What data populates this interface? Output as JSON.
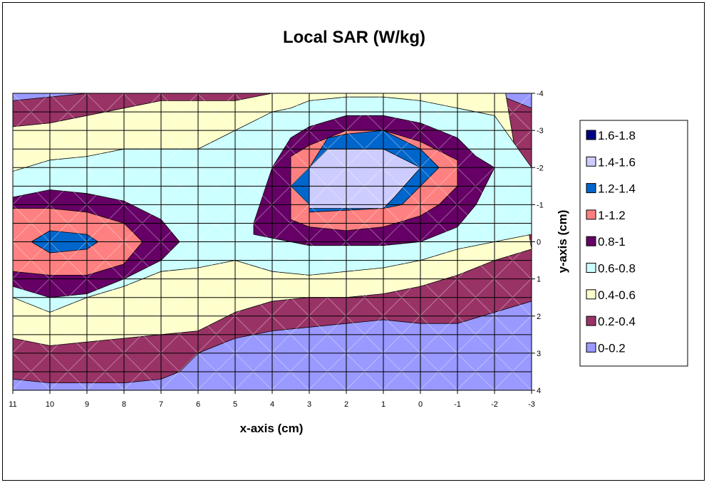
{
  "chart_data": {
    "type": "contour",
    "title": "Local SAR (W/kg)",
    "xlabel": "x-axis (cm)",
    "ylabel": "y-axis (cm)",
    "x_ticks": [
      "11",
      "10",
      "9",
      "8",
      "7",
      "6",
      "5",
      "4",
      "3",
      "2",
      "1",
      "0",
      "-1",
      "-2",
      "-3"
    ],
    "y_ticks": [
      "-4",
      "-3",
      "-2",
      "-1",
      "0",
      "1",
      "2",
      "3",
      "4"
    ],
    "xlim": [
      11,
      -3
    ],
    "ylim": [
      -4,
      4
    ],
    "grid": true,
    "legend_position": "right",
    "legend": [
      {
        "label": "1.6-1.8",
        "color": "#000080"
      },
      {
        "label": "1.4-1.6",
        "color": "#CCCCFF"
      },
      {
        "label": "1.2-1.4",
        "color": "#0066CC"
      },
      {
        "label": "1-1.2",
        "color": "#FF8080"
      },
      {
        "label": "0.8-1",
        "color": "#660066"
      },
      {
        "label": "0.6-0.8",
        "color": "#CCFFFF"
      },
      {
        "label": "0.4-0.6",
        "color": "#FFFFCC"
      },
      {
        "label": "0.2-0.4",
        "color": "#993366"
      },
      {
        "label": "0-0.2",
        "color": "#9999FF"
      }
    ],
    "bands": [
      {
        "label": "0-0.2",
        "color": "#9999FF",
        "points": [
          [
            11,
            -4
          ],
          [
            -3,
            -4
          ],
          [
            -3,
            4
          ],
          [
            11,
            4
          ]
        ]
      },
      {
        "label": "0.2-0.4",
        "color": "#993366",
        "points": [
          [
            11,
            -3.8
          ],
          [
            9,
            -4
          ],
          [
            4,
            -4
          ],
          [
            1,
            -4
          ],
          [
            -2,
            -4
          ],
          [
            -3,
            -3.6
          ],
          [
            -3,
            1.6
          ],
          [
            -2,
            1.9
          ],
          [
            -1,
            2.2
          ],
          [
            0,
            2.2
          ],
          [
            1,
            2.1
          ],
          [
            2,
            2.2
          ],
          [
            4,
            2.4
          ],
          [
            5,
            2.6
          ],
          [
            6,
            3
          ],
          [
            6.5,
            3.5
          ],
          [
            7,
            3.7
          ],
          [
            8,
            3.8
          ],
          [
            9,
            3.8
          ],
          [
            10,
            3.8
          ],
          [
            11,
            3.7
          ]
        ]
      },
      {
        "label": "0.4-0.6",
        "color": "#FFFFCC",
        "points": [
          [
            11,
            -3.1
          ],
          [
            10,
            -3.2
          ],
          [
            9,
            -3.4
          ],
          [
            8,
            -3.6
          ],
          [
            7,
            -3.8
          ],
          [
            6,
            -3.8
          ],
          [
            5,
            -3.8
          ],
          [
            4,
            -4
          ],
          [
            2,
            -4
          ],
          [
            0,
            -4
          ],
          [
            -2,
            -4
          ],
          [
            -2.3,
            -4
          ],
          [
            -3,
            0.2
          ],
          [
            -2,
            0.5
          ],
          [
            -1,
            0.9
          ],
          [
            0,
            1.2
          ],
          [
            1,
            1.4
          ],
          [
            2,
            1.5
          ],
          [
            3,
            1.5
          ],
          [
            4,
            1.6
          ],
          [
            5,
            1.9
          ],
          [
            6,
            2.4
          ],
          [
            7,
            2.5
          ],
          [
            8,
            2.6
          ],
          [
            9,
            2.7
          ],
          [
            10,
            2.8
          ],
          [
            11,
            2.6
          ]
        ]
      },
      {
        "label": "0.6-0.8",
        "color": "#CCFFFF",
        "points": [
          [
            11,
            -1.9
          ],
          [
            10,
            -2.2
          ],
          [
            9,
            -2.3
          ],
          [
            8,
            -2.5
          ],
          [
            7,
            -2.5
          ],
          [
            6,
            -2.5
          ],
          [
            5,
            -3
          ],
          [
            4,
            -3.5
          ],
          [
            3.5,
            -3.6
          ],
          [
            3,
            -3.8
          ],
          [
            2,
            -3.9
          ],
          [
            1,
            -3.9
          ],
          [
            0,
            -3.8
          ],
          [
            -1,
            -3.6
          ],
          [
            -2,
            -3.4
          ],
          [
            -3,
            -2.0
          ],
          [
            -3,
            -0.2
          ],
          [
            -2,
            0
          ],
          [
            -1,
            0.2
          ],
          [
            0,
            0.5
          ],
          [
            1,
            0.7
          ],
          [
            2,
            0.8
          ],
          [
            3,
            0.9
          ],
          [
            4,
            0.8
          ],
          [
            5,
            0.5
          ],
          [
            6,
            0.7
          ],
          [
            7,
            0.8
          ],
          [
            8,
            1.2
          ],
          [
            9,
            1.5
          ],
          [
            10,
            1.9
          ],
          [
            11,
            1.5
          ]
        ]
      },
      {
        "label": "0.8-1",
        "color": "#660066",
        "points": [
          [
            11,
            -1.2
          ],
          [
            10,
            -1.4
          ],
          [
            9,
            -1.3
          ],
          [
            8,
            -1.1
          ],
          [
            7,
            -0.6
          ],
          [
            6.5,
            0
          ],
          [
            7,
            0.5
          ],
          [
            8,
            1.0
          ],
          [
            9,
            1.4
          ],
          [
            10,
            1.5
          ],
          [
            11,
            1.2
          ]
        ]
      },
      {
        "label": "0.8-1",
        "color": "#660066",
        "points": [
          [
            4.5,
            -0.5
          ],
          [
            4,
            -2
          ],
          [
            3.5,
            -2.8
          ],
          [
            3,
            -3.1
          ],
          [
            2,
            -3.4
          ],
          [
            1,
            -3.4
          ],
          [
            0,
            -3.2
          ],
          [
            -1,
            -2.8
          ],
          [
            -1.5,
            -2.3
          ],
          [
            -2,
            -2
          ],
          [
            -1.5,
            -1.0
          ],
          [
            -1,
            -0.4
          ],
          [
            0,
            0
          ],
          [
            1,
            0.1
          ],
          [
            2,
            0.1
          ],
          [
            3,
            0.1
          ],
          [
            4,
            -0.1
          ],
          [
            4.5,
            -0.2
          ]
        ]
      },
      {
        "label": "1-1.2",
        "color": "#FF8080",
        "points": [
          [
            11,
            -0.9
          ],
          [
            10,
            -0.9
          ],
          [
            9,
            -0.8
          ],
          [
            8,
            -0.5
          ],
          [
            7.5,
            0
          ],
          [
            8,
            0.6
          ],
          [
            9,
            0.9
          ],
          [
            10,
            0.9
          ],
          [
            11,
            0.8
          ]
        ]
      },
      {
        "label": "1-1.2",
        "color": "#FF8080",
        "points": [
          [
            3.5,
            -1.0
          ],
          [
            3.5,
            -2.3
          ],
          [
            3,
            -2.6
          ],
          [
            2,
            -3.0
          ],
          [
            1,
            -3.0
          ],
          [
            0,
            -2.7
          ],
          [
            -1,
            -2.2
          ],
          [
            -1,
            -1.5
          ],
          [
            -0.5,
            -1.0
          ],
          [
            0,
            -0.7
          ],
          [
            1,
            -0.4
          ],
          [
            2,
            -0.3
          ],
          [
            3,
            -0.4
          ],
          [
            3.5,
            -0.6
          ]
        ]
      },
      {
        "label": "1.2-1.4",
        "color": "#0066CC",
        "points": [
          [
            10.5,
            0
          ],
          [
            10,
            -0.3
          ],
          [
            9,
            -0.2
          ],
          [
            8.7,
            0
          ],
          [
            9,
            0.2
          ],
          [
            10,
            0.3
          ]
        ]
      },
      {
        "label": "1.2-1.4",
        "color": "#0066CC",
        "points": [
          [
            3,
            -2
          ],
          [
            3.5,
            -1.5
          ],
          [
            3,
            -1.0
          ],
          [
            3,
            -0.8
          ],
          [
            1,
            -0.9
          ],
          [
            0.5,
            -1.0
          ],
          [
            -0.5,
            -2.0
          ],
          [
            0,
            -2.5
          ],
          [
            1,
            -3.0
          ],
          [
            2,
            -2.9
          ],
          [
            2.5,
            -2.8
          ]
        ]
      },
      {
        "label": "1.4-1.6",
        "color": "#CCCCFF",
        "points": [
          [
            3,
            -2.0
          ],
          [
            3,
            -0.9
          ],
          [
            1,
            -0.9
          ],
          [
            0.7,
            -1.2
          ],
          [
            0,
            -2.0
          ],
          [
            1,
            -2.5
          ],
          [
            2,
            -2.5
          ],
          [
            2.5,
            -2.5
          ]
        ]
      }
    ]
  }
}
